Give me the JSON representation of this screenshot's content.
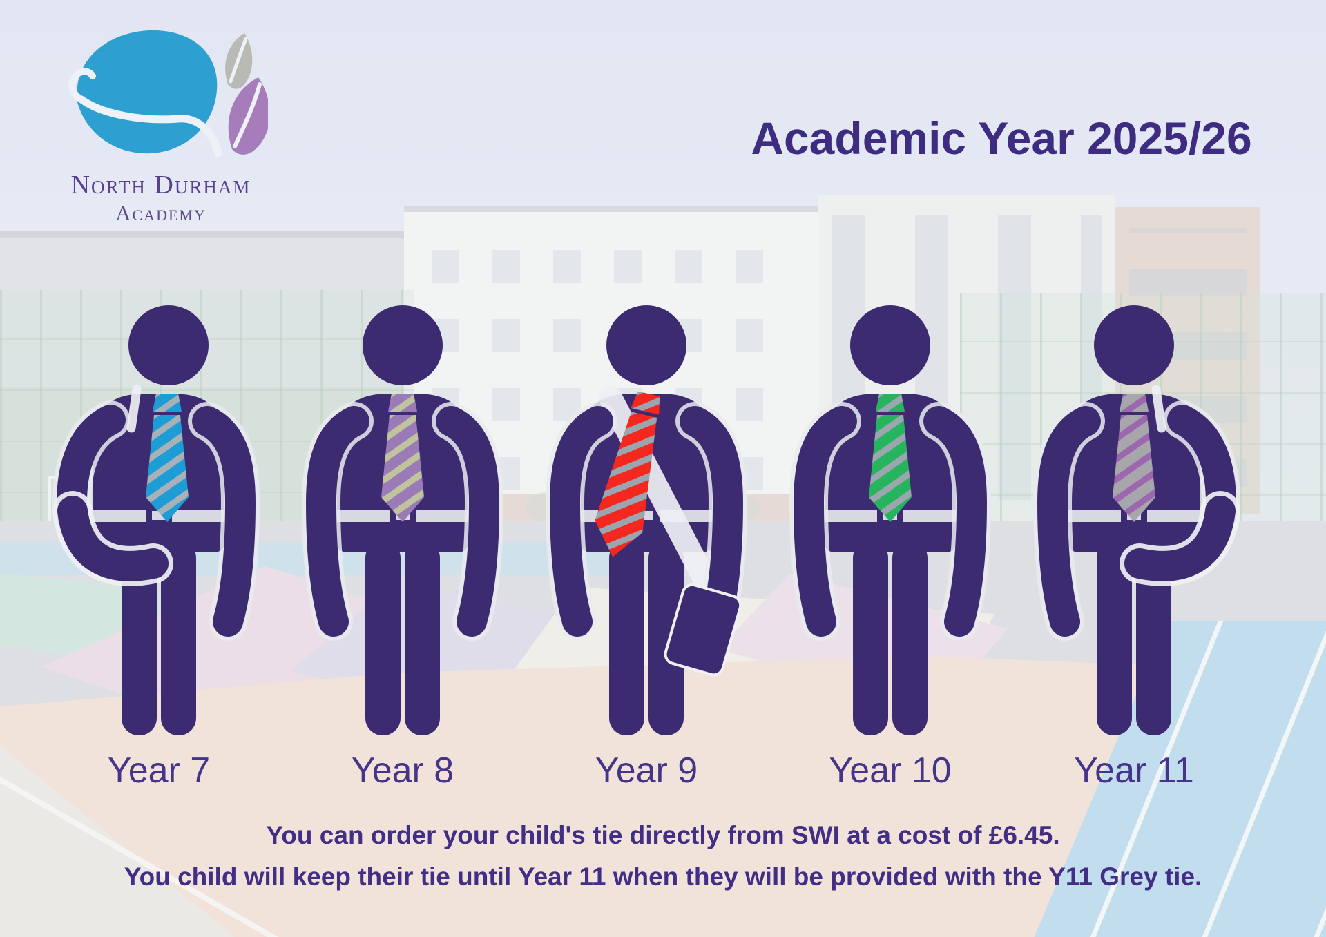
{
  "logo": {
    "name_line1": "North Durham",
    "name_line2": "Academy"
  },
  "header": {
    "title": "Academic Year 2025/26"
  },
  "figures": [
    {
      "label": "Year 7",
      "variant": "backpack-left",
      "tie_color": "#1E9CD6",
      "tie_stripe": "#A7B1B7"
    },
    {
      "label": "Year 8",
      "variant": "standing",
      "tie_color": "#9A7BB7",
      "tie_stripe": "#BFC49D"
    },
    {
      "label": "Year 9",
      "variant": "satchel",
      "tie_color": "#F4281E",
      "tie_stripe": "#9AA5AF"
    },
    {
      "label": "Year 10",
      "variant": "standing",
      "tie_color": "#26B45F",
      "tie_stripe": "#9CA6AE"
    },
    {
      "label": "Year 11",
      "variant": "backpack-right",
      "tie_color": "#A7A7AB",
      "tie_stripe": "#9C67AF"
    }
  ],
  "footer": {
    "line1": "You can order your child's tie directly from SWI at a cost of £6.45.",
    "line2": "You child will keep their tie until Year 11 when they will be provided with the Y11 Grey tie."
  },
  "colors": {
    "figure_purple": "#3D2B71",
    "gap": "#E9EBEE",
    "strap_white": "#EEF0F4",
    "title_text": "#3E2C80",
    "label_text": "#45358A",
    "footer_text": "#422E84",
    "logo_blue": "#2E9FD1",
    "logo_grey": "#B9B9B5",
    "logo_purple": "#A77CBB",
    "logo_text": "#5B3F92"
  }
}
